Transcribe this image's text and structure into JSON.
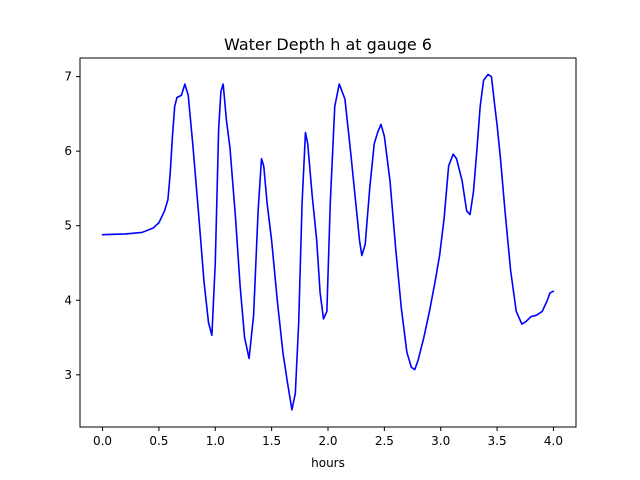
{
  "chart_data": {
    "type": "line",
    "title": "Water Depth h at gauge 6",
    "xlabel": "hours",
    "ylabel": "",
    "xlim": [
      -0.2,
      4.2
    ],
    "ylim": [
      2.3,
      7.25
    ],
    "xticks": [
      0.0,
      0.5,
      1.0,
      1.5,
      2.0,
      2.5,
      3.0,
      3.5,
      4.0
    ],
    "xtick_labels": [
      "0.0",
      "0.5",
      "1.0",
      "1.5",
      "2.0",
      "2.5",
      "3.0",
      "3.5",
      "4.0"
    ],
    "yticks": [
      3,
      4,
      5,
      6,
      7
    ],
    "ytick_labels": [
      "3",
      "4",
      "5",
      "6",
      "7"
    ],
    "grid": false,
    "series": [
      {
        "color": "#0000ff",
        "x": [
          0.0,
          0.2,
          0.35,
          0.45,
          0.5,
          0.55,
          0.58,
          0.6,
          0.62,
          0.64,
          0.66,
          0.7,
          0.73,
          0.76,
          0.8,
          0.85,
          0.9,
          0.94,
          0.97,
          1.0,
          1.03,
          1.05,
          1.07,
          1.1,
          1.13,
          1.18,
          1.22,
          1.26,
          1.3,
          1.34,
          1.38,
          1.41,
          1.43,
          1.46,
          1.5,
          1.55,
          1.6,
          1.64,
          1.68,
          1.71,
          1.74,
          1.77,
          1.8,
          1.82,
          1.86,
          1.9,
          1.93,
          1.96,
          1.99,
          2.02,
          2.06,
          2.1,
          2.15,
          2.2,
          2.24,
          2.28,
          2.3,
          2.33,
          2.37,
          2.41,
          2.44,
          2.47,
          2.5,
          2.55,
          2.6,
          2.65,
          2.7,
          2.74,
          2.77,
          2.8,
          2.85,
          2.9,
          2.95,
          2.99,
          3.03,
          3.07,
          3.11,
          3.14,
          3.19,
          3.23,
          3.26,
          3.29,
          3.32,
          3.35,
          3.38,
          3.42,
          3.45,
          3.48,
          3.5,
          3.53,
          3.57,
          3.62,
          3.67,
          3.72,
          3.76,
          3.8,
          3.85,
          3.9,
          3.94,
          3.97,
          4.0
        ],
        "y": [
          4.88,
          4.89,
          4.91,
          4.97,
          5.04,
          5.2,
          5.35,
          5.7,
          6.2,
          6.6,
          6.72,
          6.75,
          6.9,
          6.75,
          6.1,
          5.2,
          4.25,
          3.7,
          3.53,
          4.5,
          6.3,
          6.8,
          6.9,
          6.4,
          6.05,
          5.1,
          4.2,
          3.5,
          3.22,
          3.8,
          5.2,
          5.9,
          5.8,
          5.3,
          4.8,
          4.0,
          3.3,
          2.9,
          2.53,
          2.75,
          3.7,
          5.3,
          6.25,
          6.1,
          5.4,
          4.8,
          4.1,
          3.75,
          3.85,
          5.3,
          6.6,
          6.9,
          6.7,
          6.0,
          5.4,
          4.8,
          4.6,
          4.75,
          5.5,
          6.1,
          6.25,
          6.36,
          6.2,
          5.6,
          4.7,
          3.9,
          3.3,
          3.1,
          3.07,
          3.2,
          3.5,
          3.85,
          4.25,
          4.6,
          5.1,
          5.8,
          5.96,
          5.9,
          5.6,
          5.2,
          5.15,
          5.45,
          6.0,
          6.6,
          6.95,
          7.03,
          7.0,
          6.6,
          6.35,
          5.9,
          5.2,
          4.4,
          3.85,
          3.68,
          3.72,
          3.78,
          3.8,
          3.85,
          3.98,
          4.1,
          4.12
        ]
      }
    ]
  }
}
